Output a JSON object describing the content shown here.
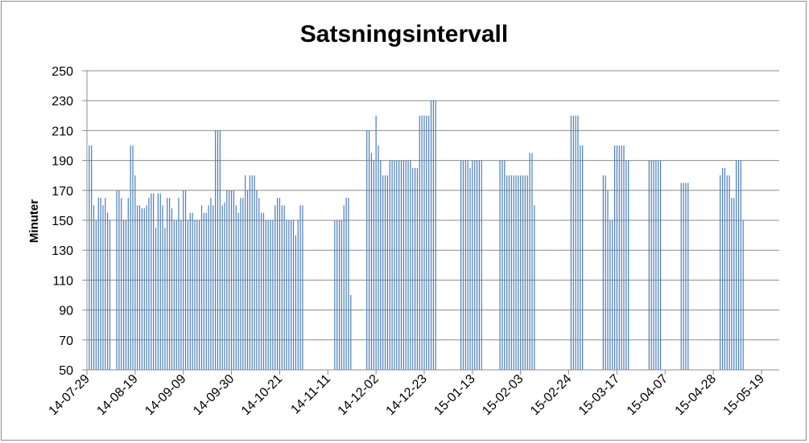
{
  "chart_data": {
    "type": "bar",
    "title": "Satsningsintervall",
    "xlabel": "",
    "ylabel": "Minuter",
    "ylim": [
      50,
      250
    ],
    "yticks": [
      50,
      70,
      90,
      110,
      130,
      150,
      170,
      190,
      210,
      230,
      250
    ],
    "xlim": [
      "2014-07-29",
      "2015-05-19"
    ],
    "xtick_labels": [
      "14-07-29",
      "14-08-19",
      "14-09-09",
      "14-09-30",
      "14-10-21",
      "14-11-11",
      "14-12-02",
      "14-12-23",
      "15-01-13",
      "15-02-03",
      "15-02-24",
      "15-03-17",
      "15-04-07",
      "15-04-28",
      "15-05-19"
    ],
    "grid": true,
    "legend": "none",
    "color": "#4a7ebb",
    "series": [
      {
        "values": [
          [
            "2014-07-30",
            200
          ],
          [
            "2014-07-31",
            200
          ],
          [
            "2014-08-01",
            160
          ],
          [
            "2014-08-02",
            150
          ],
          [
            "2014-08-03",
            165
          ],
          [
            "2014-08-04",
            165
          ],
          [
            "2014-08-05",
            160
          ],
          [
            "2014-08-06",
            165
          ],
          [
            "2014-08-07",
            155
          ],
          [
            "2014-08-08",
            150
          ],
          [
            "2014-08-11",
            170
          ],
          [
            "2014-08-12",
            170
          ],
          [
            "2014-08-13",
            165
          ],
          [
            "2014-08-14",
            150
          ],
          [
            "2014-08-15",
            150
          ],
          [
            "2014-08-16",
            165
          ],
          [
            "2014-08-17",
            200
          ],
          [
            "2014-08-18",
            200
          ],
          [
            "2014-08-19",
            180
          ],
          [
            "2014-08-20",
            160
          ],
          [
            "2014-08-21",
            160
          ],
          [
            "2014-08-22",
            158
          ],
          [
            "2014-08-23",
            158
          ],
          [
            "2014-08-24",
            160
          ],
          [
            "2014-08-25",
            165
          ],
          [
            "2014-08-26",
            168
          ],
          [
            "2014-08-27",
            168
          ],
          [
            "2014-08-28",
            145
          ],
          [
            "2014-08-29",
            168
          ],
          [
            "2014-08-30",
            168
          ],
          [
            "2014-08-31",
            160
          ],
          [
            "2014-09-01",
            145
          ],
          [
            "2014-09-02",
            165
          ],
          [
            "2014-09-03",
            165
          ],
          [
            "2014-09-04",
            158
          ],
          [
            "2014-09-05",
            150
          ],
          [
            "2014-09-06",
            150
          ],
          [
            "2014-09-07",
            165
          ],
          [
            "2014-09-08",
            150
          ],
          [
            "2014-09-09",
            170
          ],
          [
            "2014-09-10",
            170
          ],
          [
            "2014-09-11",
            150
          ],
          [
            "2014-09-12",
            155
          ],
          [
            "2014-09-13",
            155
          ],
          [
            "2014-09-14",
            150
          ],
          [
            "2014-09-15",
            150
          ],
          [
            "2014-09-16",
            150
          ],
          [
            "2014-09-17",
            160
          ],
          [
            "2014-09-18",
            155
          ],
          [
            "2014-09-19",
            155
          ],
          [
            "2014-09-20",
            160
          ],
          [
            "2014-09-21",
            165
          ],
          [
            "2014-09-22",
            160
          ],
          [
            "2014-09-23",
            210
          ],
          [
            "2014-09-24",
            210
          ],
          [
            "2014-09-25",
            210
          ],
          [
            "2014-09-26",
            160
          ],
          [
            "2014-09-27",
            162
          ],
          [
            "2014-09-28",
            170
          ],
          [
            "2014-09-29",
            170
          ],
          [
            "2014-09-30",
            170
          ],
          [
            "2014-10-01",
            170
          ],
          [
            "2014-10-02",
            160
          ],
          [
            "2014-10-03",
            155
          ],
          [
            "2014-10-04",
            165
          ],
          [
            "2014-10-05",
            165
          ],
          [
            "2014-10-06",
            180
          ],
          [
            "2014-10-07",
            170
          ],
          [
            "2014-10-08",
            180
          ],
          [
            "2014-10-09",
            180
          ],
          [
            "2014-10-10",
            180
          ],
          [
            "2014-10-11",
            170
          ],
          [
            "2014-10-12",
            165
          ],
          [
            "2014-10-13",
            155
          ],
          [
            "2014-10-14",
            155
          ],
          [
            "2014-10-15",
            150
          ],
          [
            "2014-10-16",
            150
          ],
          [
            "2014-10-17",
            150
          ],
          [
            "2014-10-18",
            150
          ],
          [
            "2014-10-19",
            160
          ],
          [
            "2014-10-20",
            165
          ],
          [
            "2014-10-21",
            165
          ],
          [
            "2014-10-22",
            160
          ],
          [
            "2014-10-23",
            160
          ],
          [
            "2014-10-24",
            150
          ],
          [
            "2014-10-25",
            150
          ],
          [
            "2014-10-26",
            150
          ],
          [
            "2014-10-27",
            150
          ],
          [
            "2014-10-28",
            140
          ],
          [
            "2014-10-29",
            150
          ],
          [
            "2014-10-30",
            160
          ],
          [
            "2014-10-31",
            160
          ],
          [
            "2014-11-14",
            150
          ],
          [
            "2014-11-15",
            150
          ],
          [
            "2014-11-16",
            150
          ],
          [
            "2014-11-17",
            150
          ],
          [
            "2014-11-18",
            160
          ],
          [
            "2014-11-19",
            165
          ],
          [
            "2014-11-20",
            165
          ],
          [
            "2014-11-21",
            100
          ],
          [
            "2014-11-28",
            210
          ],
          [
            "2014-11-29",
            210
          ],
          [
            "2014-11-30",
            195
          ],
          [
            "2014-12-01",
            190
          ],
          [
            "2014-12-02",
            220
          ],
          [
            "2014-12-03",
            200
          ],
          [
            "2014-12-04",
            190
          ],
          [
            "2014-12-05",
            180
          ],
          [
            "2014-12-06",
            180
          ],
          [
            "2014-12-07",
            180
          ],
          [
            "2014-12-08",
            190
          ],
          [
            "2014-12-09",
            190
          ],
          [
            "2014-12-10",
            190
          ],
          [
            "2014-12-11",
            190
          ],
          [
            "2014-12-12",
            190
          ],
          [
            "2014-12-13",
            190
          ],
          [
            "2014-12-14",
            190
          ],
          [
            "2014-12-15",
            190
          ],
          [
            "2014-12-16",
            190
          ],
          [
            "2014-12-17",
            190
          ],
          [
            "2014-12-18",
            185
          ],
          [
            "2014-12-19",
            185
          ],
          [
            "2014-12-20",
            185
          ],
          [
            "2014-12-21",
            220
          ],
          [
            "2014-12-22",
            220
          ],
          [
            "2014-12-23",
            220
          ],
          [
            "2014-12-24",
            220
          ],
          [
            "2014-12-25",
            220
          ],
          [
            "2014-12-26",
            230
          ],
          [
            "2014-12-27",
            230
          ],
          [
            "2014-12-28",
            230
          ],
          [
            "2015-01-08",
            190
          ],
          [
            "2015-01-09",
            190
          ],
          [
            "2015-01-10",
            190
          ],
          [
            "2015-01-11",
            190
          ],
          [
            "2015-01-12",
            185
          ],
          [
            "2015-01-13",
            190
          ],
          [
            "2015-01-14",
            190
          ],
          [
            "2015-01-15",
            190
          ],
          [
            "2015-01-16",
            190
          ],
          [
            "2015-01-17",
            190
          ],
          [
            "2015-01-25",
            190
          ],
          [
            "2015-01-26",
            190
          ],
          [
            "2015-01-27",
            190
          ],
          [
            "2015-01-28",
            180
          ],
          [
            "2015-01-29",
            180
          ],
          [
            "2015-01-30",
            180
          ],
          [
            "2015-01-31",
            180
          ],
          [
            "2015-02-01",
            180
          ],
          [
            "2015-02-02",
            180
          ],
          [
            "2015-02-03",
            180
          ],
          [
            "2015-02-04",
            180
          ],
          [
            "2015-02-05",
            180
          ],
          [
            "2015-02-06",
            180
          ],
          [
            "2015-02-07",
            195
          ],
          [
            "2015-02-08",
            195
          ],
          [
            "2015-02-09",
            160
          ],
          [
            "2015-02-25",
            220
          ],
          [
            "2015-02-26",
            220
          ],
          [
            "2015-02-27",
            220
          ],
          [
            "2015-02-28",
            220
          ],
          [
            "2015-03-01",
            200
          ],
          [
            "2015-03-02",
            200
          ],
          [
            "2015-03-11",
            180
          ],
          [
            "2015-03-12",
            180
          ],
          [
            "2015-03-13",
            170
          ],
          [
            "2015-03-14",
            150
          ],
          [
            "2015-03-15",
            150
          ],
          [
            "2015-03-16",
            200
          ],
          [
            "2015-03-17",
            200
          ],
          [
            "2015-03-18",
            200
          ],
          [
            "2015-03-19",
            200
          ],
          [
            "2015-03-20",
            200
          ],
          [
            "2015-03-21",
            190
          ],
          [
            "2015-03-22",
            190
          ],
          [
            "2015-03-31",
            190
          ],
          [
            "2015-04-01",
            190
          ],
          [
            "2015-04-02",
            190
          ],
          [
            "2015-04-03",
            190
          ],
          [
            "2015-04-04",
            190
          ],
          [
            "2015-04-05",
            190
          ],
          [
            "2015-04-14",
            175
          ],
          [
            "2015-04-15",
            175
          ],
          [
            "2015-04-16",
            175
          ],
          [
            "2015-04-17",
            175
          ],
          [
            "2015-05-01",
            180
          ],
          [
            "2015-05-02",
            185
          ],
          [
            "2015-05-03",
            185
          ],
          [
            "2015-05-04",
            180
          ],
          [
            "2015-05-05",
            180
          ],
          [
            "2015-05-06",
            165
          ],
          [
            "2015-05-07",
            165
          ],
          [
            "2015-05-08",
            190
          ],
          [
            "2015-05-09",
            190
          ],
          [
            "2015-05-10",
            190
          ],
          [
            "2015-05-11",
            150
          ]
        ]
      }
    ]
  }
}
